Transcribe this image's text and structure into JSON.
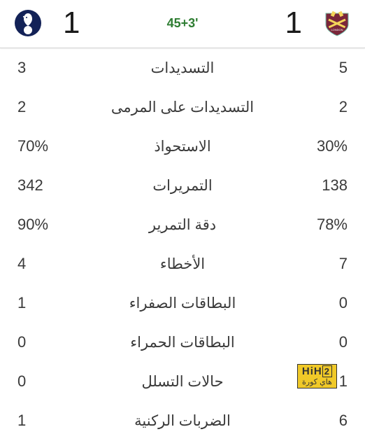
{
  "header": {
    "home_team": "Tottenham Hotspur",
    "away_team": "West Ham United",
    "home_score": "1",
    "away_score": "1",
    "match_time": "45+3'",
    "time_color": "#2e7d32",
    "spurs_colors": {
      "main": "#132257",
      "white": "#ffffff"
    },
    "westham_colors": {
      "claret": "#7a263a",
      "blue": "#1bb1e7",
      "gold": "#f3d459"
    }
  },
  "stats": [
    {
      "label": "التسديدات",
      "home": "3",
      "away": "5"
    },
    {
      "label": "التسديدات على المرمى",
      "home": "2",
      "away": "2"
    },
    {
      "label": "الاستحواذ",
      "home": "70%",
      "away": "30%"
    },
    {
      "label": "التمريرات",
      "home": "342",
      "away": "138"
    },
    {
      "label": "دقة التمرير",
      "home": "90%",
      "away": "78%"
    },
    {
      "label": "الأخطاء",
      "home": "4",
      "away": "7"
    },
    {
      "label": "البطاقات الصفراء",
      "home": "1",
      "away": "0"
    },
    {
      "label": "البطاقات الحمراء",
      "home": "0",
      "away": "0"
    },
    {
      "label": "حالات التسلل",
      "home": "0",
      "away": "1"
    },
    {
      "label": "الضربات الركنية",
      "home": "1",
      "away": "6"
    }
  ],
  "watermark": {
    "line1_a": "HiH",
    "line1_b": "2",
    "line2": "هاي كورة",
    "bg": "#f0c928"
  },
  "layout": {
    "background": "#ffffff",
    "text_color": "#3a3a3a",
    "row_fontsize": 21,
    "score_fontsize": 44
  }
}
